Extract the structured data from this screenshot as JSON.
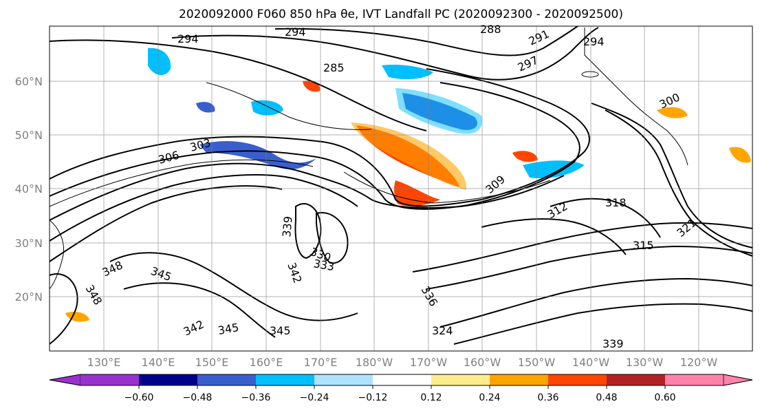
{
  "title": "2020092000 F060 850 hPa θe, IVT Landfall PC (2020092300 - 2020092500)",
  "lat_labels": [
    "60°N",
    "50°N",
    "40°N",
    "30°N",
    "20°N"
  ],
  "lon_labels": [
    "130°E",
    "140°E",
    "150°E",
    "160°E",
    "170°E",
    "180°W",
    "170°W",
    "160°W",
    "150°W",
    "140°W",
    "130°W",
    "120°W"
  ],
  "contour_labels": [
    "294",
    "294",
    "288",
    "291",
    "294",
    "285",
    "297",
    "300",
    "303",
    "306",
    "309",
    "312",
    "315",
    "318",
    "321",
    "324",
    "330",
    "333",
    "336",
    "339",
    "339",
    "342",
    "342",
    "345",
    "345",
    "345",
    "348",
    "348"
  ],
  "colorbar": {
    "ticks": [
      "−0.60",
      "−0.48",
      "−0.36",
      "−0.24",
      "−0.12",
      "0.12",
      "0.24",
      "0.36",
      "0.48",
      "0.60"
    ],
    "colors": [
      "#9932cc",
      "#00008b",
      "#3a5fcd",
      "#00bfff",
      "#b0e2ff",
      "#ffffff",
      "#ffec8b",
      "#ffa500",
      "#ff4500",
      "#b22222",
      "#ff82ab"
    ]
  },
  "colors": {
    "contour": "#000000",
    "tick_text": "#808080",
    "grid": "#808080"
  }
}
